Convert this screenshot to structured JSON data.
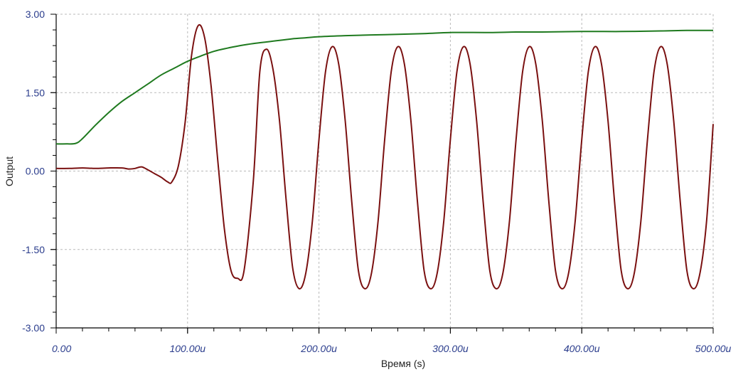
{
  "chart_data": {
    "type": "line",
    "title": "",
    "xlabel": "Время (s)",
    "ylabel": "Output",
    "xlim": [
      0,
      500
    ],
    "ylim": [
      -3,
      3
    ],
    "x_unit": "u",
    "grid": true,
    "x_ticks": [
      0,
      100,
      200,
      300,
      400,
      500
    ],
    "x_tick_labels": [
      "0.00",
      "100.00u",
      "200.00u",
      "300.00u",
      "400.00u",
      "500.00u"
    ],
    "y_ticks": [
      3,
      1.5,
      0,
      -1.5,
      -3
    ],
    "y_tick_labels": [
      "3.00",
      "1.50",
      "0.00",
      "-1.50",
      "-3.00"
    ],
    "series": [
      {
        "color": "#1f7a1f",
        "x": [
          0,
          8,
          15,
          20,
          30,
          40,
          50,
          60,
          70,
          80,
          90,
          100,
          110,
          120,
          130,
          140,
          150,
          160,
          170,
          180,
          190,
          200,
          220,
          250,
          280,
          300,
          330,
          350,
          370,
          400,
          430,
          460,
          480,
          500
        ],
        "y": [
          0.52,
          0.52,
          0.53,
          0.62,
          0.88,
          1.12,
          1.33,
          1.5,
          1.67,
          1.84,
          1.97,
          2.1,
          2.2,
          2.29,
          2.35,
          2.4,
          2.44,
          2.47,
          2.5,
          2.53,
          2.55,
          2.57,
          2.59,
          2.61,
          2.63,
          2.65,
          2.65,
          2.66,
          2.66,
          2.67,
          2.67,
          2.68,
          2.69,
          2.69
        ]
      },
      {
        "color": "#7a1010",
        "x": [
          0,
          10,
          20,
          30,
          40,
          50,
          55,
          60,
          65,
          70,
          75,
          80,
          85,
          88,
          93,
          98,
          103,
          108,
          113,
          118,
          123,
          128,
          133,
          138,
          143,
          150,
          155,
          160,
          165,
          170,
          175,
          180,
          185,
          190,
          195,
          200,
          205,
          210,
          215,
          220,
          225,
          230,
          235,
          240,
          245,
          250,
          255,
          260,
          265,
          270,
          275,
          280,
          285,
          290,
          295,
          300,
          305,
          310,
          315,
          320,
          325,
          330,
          335,
          340,
          345,
          350,
          355,
          360,
          365,
          370,
          375,
          380,
          385,
          390,
          395,
          400,
          405,
          410,
          415,
          420,
          425,
          430,
          435,
          440,
          445,
          450,
          455,
          460,
          465,
          470,
          475,
          480,
          485,
          490,
          495,
          500
        ],
        "y": [
          0.05,
          0.05,
          0.06,
          0.05,
          0.06,
          0.06,
          0.04,
          0.05,
          0.08,
          0.02,
          -0.05,
          -0.12,
          -0.21,
          -0.21,
          0.1,
          0.9,
          2.2,
          2.78,
          2.55,
          1.6,
          0.2,
          -1.1,
          -1.9,
          -2.05,
          -1.9,
          -0.2,
          1.9,
          2.33,
          1.95,
          0.95,
          -0.55,
          -1.85,
          -2.25,
          -1.95,
          -0.95,
          0.6,
          1.9,
          2.38,
          2.05,
          0.95,
          -0.6,
          -1.9,
          -2.25,
          -1.95,
          -0.95,
          0.6,
          1.9,
          2.38,
          2.05,
          0.95,
          -0.6,
          -1.9,
          -2.25,
          -1.95,
          -0.95,
          0.6,
          1.9,
          2.38,
          2.05,
          0.95,
          -0.6,
          -1.9,
          -2.25,
          -1.95,
          -0.95,
          0.6,
          1.9,
          2.38,
          2.05,
          0.95,
          -0.6,
          -1.9,
          -2.25,
          -1.95,
          -0.95,
          0.6,
          1.9,
          2.38,
          2.05,
          0.95,
          -0.6,
          -1.9,
          -2.25,
          -1.95,
          -0.95,
          0.6,
          1.9,
          2.38,
          2.05,
          0.95,
          -0.6,
          -1.9,
          -2.25,
          -1.95,
          -0.95,
          0.9
        ]
      }
    ]
  }
}
